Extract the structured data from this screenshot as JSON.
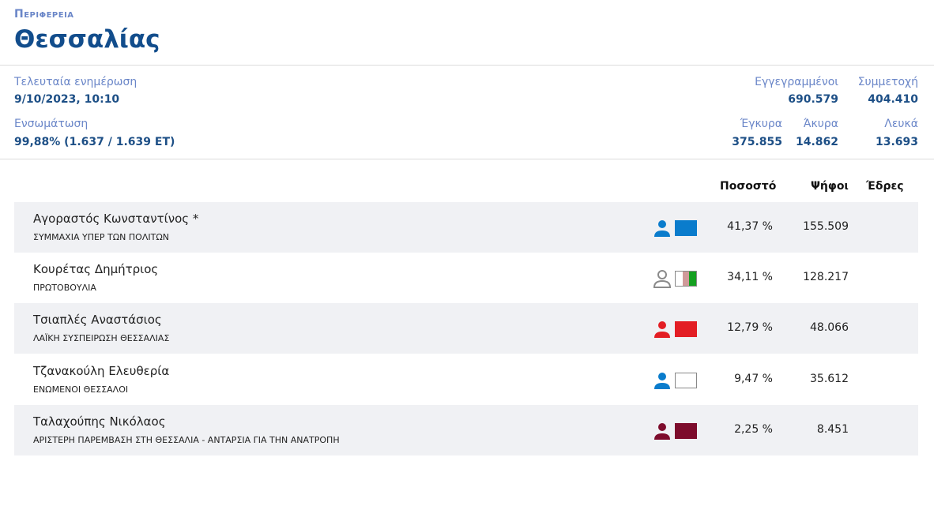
{
  "header": {
    "label": "Περιφερεια",
    "title": "Θεσσαλίας"
  },
  "info": {
    "last_update_label": "Τελευταία ενημέρωση",
    "last_update_value": "9/10/2023, 10:10",
    "integration_label": "Ενσωμάτωση",
    "integration_value": "99,88% (1.637 / 1.639 ΕΤ)",
    "registered_label": "Εγγεγραμμένοι",
    "registered_value": "690.579",
    "turnout_label": "Συμμετοχή",
    "turnout_value": "404.410",
    "valid_label": "Έγκυρα",
    "valid_value": "375.855",
    "invalid_label": "Άκυρα",
    "invalid_value": "14.862",
    "blank_label": "Λευκά",
    "blank_value": "13.693"
  },
  "table": {
    "headers": {
      "percent": "Ποσοστό",
      "votes": "Ψήφοι",
      "seats": "Έδρες"
    },
    "rows": [
      {
        "name": "Αγοραστός Κωνσταντίνος *",
        "party": "ΣΥΜΜΑΧΙΑ ΥΠΕΡ ΤΩΝ ΠΟΛΙΤΩΝ",
        "percent": "41,37 %",
        "votes": "155.509",
        "seats": "",
        "person_color": "#0a7ccc",
        "icon": "person-filled-icon",
        "swatch": [
          "#0a7ccc"
        ]
      },
      {
        "name": "Κουρέτας Δημήτριος",
        "party": "ΠΡΩΤΟΒΟΥΛΙΑ",
        "percent": "34,11 %",
        "votes": "128.217",
        "seats": "",
        "person_color": "#8a8a8a",
        "icon": "person-outline-icon",
        "swatch": [
          "#ffffff",
          "#d09a9a",
          "#14a020"
        ]
      },
      {
        "name": "Τσιαπλές Αναστάσιος",
        "party": "ΛΑΪΚΗ ΣΥΣΠΕΙΡΩΣΗ ΘΕΣΣΑΛΙΑΣ",
        "percent": "12,79 %",
        "votes": "48.066",
        "seats": "",
        "person_color": "#e31e24",
        "icon": "person-filled-icon",
        "swatch": [
          "#e31e24"
        ]
      },
      {
        "name": "Τζανακούλη Ελευθερία",
        "party": "ΕΝΩΜΕΝΟΙ ΘΕΣΣΑΛΟΙ",
        "percent": "9,47 %",
        "votes": "35.612",
        "seats": "",
        "person_color": "#0a7ccc",
        "icon": "person-filled-icon",
        "swatch": [
          "#ffffff"
        ]
      },
      {
        "name": "Ταλαχούπης Νικόλαος",
        "party": "ΑΡΙΣΤΕΡΗ ΠΑΡΕΜΒΑΣΗ ΣΤΗ ΘΕΣΣΑΛΙΑ - ΑΝΤΑΡΣΙΑ ΓΙΑ ΤΗΝ ΑΝΑΤΡΟΠΗ",
        "percent": "2,25 %",
        "votes": "8.451",
        "seats": "",
        "person_color": "#7d0c2c",
        "icon": "person-filled-icon",
        "swatch": [
          "#7d0c2c"
        ]
      }
    ]
  }
}
